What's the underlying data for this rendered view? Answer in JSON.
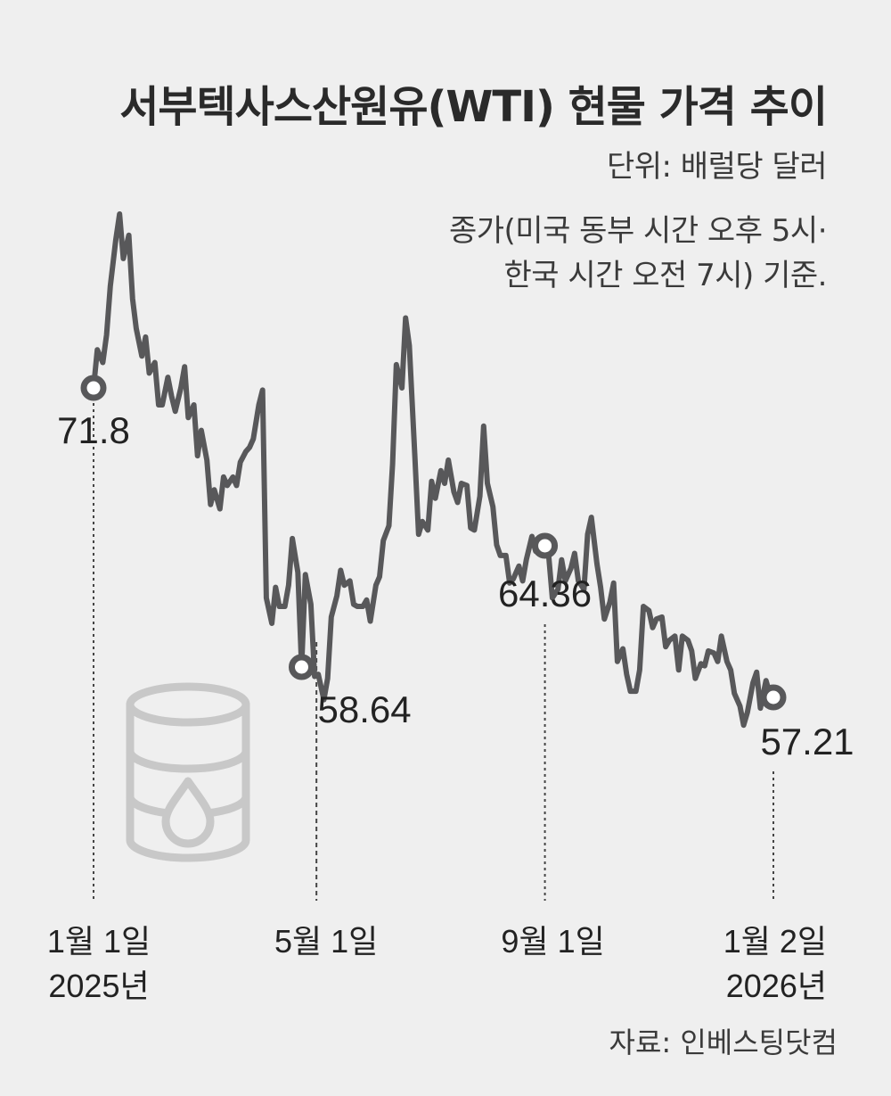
{
  "header": {
    "title": "서부텍사스산원유(WTI) 현물 가격 추이",
    "unit": "단위: 배럴당 달러",
    "note_line1": "종가(미국 동부 시간 오후 5시·",
    "note_line2": "한국 시간 오전 7시) 기준."
  },
  "source": "자료: 인베스팅닷컴",
  "icon": "oil-barrel-icon",
  "colors": {
    "background": "#efefef",
    "line": "#58585a",
    "marker_fill": "#ffffff",
    "icon": "#c8c8c8"
  },
  "chart_data": {
    "type": "line",
    "title": "서부텍사스산원유(WTI) 현물 가격 추이",
    "ylabel": "단위: 배럴당 달러",
    "x_ticks": [
      {
        "lines": [
          "1월 1일",
          "2025년"
        ],
        "date": "2025-01-01"
      },
      {
        "lines": [
          "5월 1일"
        ],
        "date": "2025-05-01"
      },
      {
        "lines": [
          "9월 1일"
        ],
        "date": "2025-09-01"
      },
      {
        "lines": [
          "1월 2일",
          "2026년"
        ],
        "date": "2026-01-02"
      }
    ],
    "labeled_points": [
      {
        "date": "2025-01-01",
        "value": 71.8,
        "label": "71.8"
      },
      {
        "date": "2025-04-23",
        "value": 58.64,
        "label": "58.64"
      },
      {
        "date": "2025-09-01",
        "value": 64.36,
        "label": "64.36"
      },
      {
        "date": "2026-01-02",
        "value": 57.21,
        "label": "57.21"
      }
    ],
    "series": [
      {
        "values": [
          [
            "2025-01-01",
            71.8
          ],
          [
            "2025-01-03",
            73.6
          ],
          [
            "2025-01-06",
            73.0
          ],
          [
            "2025-01-08",
            74.3
          ],
          [
            "2025-01-10",
            76.6
          ],
          [
            "2025-01-13",
            78.8
          ],
          [
            "2025-01-15",
            80.0
          ],
          [
            "2025-01-17",
            77.9
          ],
          [
            "2025-01-20",
            79.0
          ],
          [
            "2025-01-22",
            76.0
          ],
          [
            "2025-01-24",
            74.6
          ],
          [
            "2025-01-27",
            73.3
          ],
          [
            "2025-01-29",
            74.2
          ],
          [
            "2025-01-31",
            72.5
          ],
          [
            "2025-02-03",
            73.0
          ],
          [
            "2025-02-05",
            71.0
          ],
          [
            "2025-02-07",
            71.0
          ],
          [
            "2025-02-10",
            72.3
          ],
          [
            "2025-02-12",
            71.4
          ],
          [
            "2025-02-14",
            70.7
          ],
          [
            "2025-02-17",
            71.8
          ],
          [
            "2025-02-19",
            72.8
          ],
          [
            "2025-02-21",
            70.4
          ],
          [
            "2025-02-24",
            71.0
          ],
          [
            "2025-02-26",
            68.6
          ],
          [
            "2025-02-28",
            69.8
          ],
          [
            "2025-03-03",
            68.4
          ],
          [
            "2025-03-05",
            66.3
          ],
          [
            "2025-03-07",
            67.0
          ],
          [
            "2025-03-10",
            66.1
          ],
          [
            "2025-03-12",
            67.6
          ],
          [
            "2025-03-14",
            67.2
          ],
          [
            "2025-03-17",
            67.6
          ],
          [
            "2025-03-19",
            67.2
          ],
          [
            "2025-03-21",
            68.3
          ],
          [
            "2025-03-24",
            68.8
          ],
          [
            "2025-03-26",
            69.0
          ],
          [
            "2025-03-28",
            69.4
          ],
          [
            "2025-03-31",
            71.0
          ],
          [
            "2025-04-02",
            71.7
          ],
          [
            "2025-04-04",
            61.9
          ],
          [
            "2025-04-07",
            60.7
          ],
          [
            "2025-04-09",
            62.4
          ],
          [
            "2025-04-11",
            61.5
          ],
          [
            "2025-04-14",
            61.5
          ],
          [
            "2025-04-16",
            62.5
          ],
          [
            "2025-04-18",
            64.7
          ],
          [
            "2025-04-21",
            63.1
          ],
          [
            "2025-04-23",
            58.64
          ],
          [
            "2025-04-25",
            63.0
          ],
          [
            "2025-04-28",
            61.6
          ],
          [
            "2025-04-30",
            58.2
          ],
          [
            "2025-05-02",
            58.3
          ],
          [
            "2025-05-05",
            57.1
          ],
          [
            "2025-05-07",
            58.1
          ],
          [
            "2025-05-09",
            61.0
          ],
          [
            "2025-05-12",
            62.0
          ],
          [
            "2025-05-14",
            63.2
          ],
          [
            "2025-05-16",
            62.5
          ],
          [
            "2025-05-19",
            62.7
          ],
          [
            "2025-05-21",
            61.6
          ],
          [
            "2025-05-23",
            61.5
          ],
          [
            "2025-05-26",
            61.5
          ],
          [
            "2025-05-28",
            61.8
          ],
          [
            "2025-05-30",
            60.8
          ],
          [
            "2025-06-02",
            62.5
          ],
          [
            "2025-06-04",
            62.9
          ],
          [
            "2025-06-06",
            64.6
          ],
          [
            "2025-06-09",
            65.3
          ],
          [
            "2025-06-11",
            68.2
          ],
          [
            "2025-06-13",
            72.9
          ],
          [
            "2025-06-16",
            71.8
          ],
          [
            "2025-06-18",
            75.1
          ],
          [
            "2025-06-20",
            73.8
          ],
          [
            "2025-06-23",
            68.5
          ],
          [
            "2025-06-25",
            64.9
          ],
          [
            "2025-06-27",
            65.5
          ],
          [
            "2025-06-30",
            65.1
          ],
          [
            "2025-07-02",
            67.4
          ],
          [
            "2025-07-04",
            66.6
          ],
          [
            "2025-07-07",
            67.9
          ],
          [
            "2025-07-09",
            67.3
          ],
          [
            "2025-07-11",
            68.4
          ],
          [
            "2025-07-14",
            66.9
          ],
          [
            "2025-07-16",
            66.4
          ],
          [
            "2025-07-18",
            67.3
          ],
          [
            "2025-07-21",
            67.2
          ],
          [
            "2025-07-23",
            65.2
          ],
          [
            "2025-07-25",
            65.1
          ],
          [
            "2025-07-28",
            66.7
          ],
          [
            "2025-07-30",
            70.0
          ],
          [
            "2025-08-01",
            67.3
          ],
          [
            "2025-08-04",
            66.2
          ],
          [
            "2025-08-06",
            64.4
          ],
          [
            "2025-08-08",
            63.9
          ],
          [
            "2025-08-11",
            63.9
          ],
          [
            "2025-08-13",
            62.6
          ],
          [
            "2025-08-15",
            62.8
          ],
          [
            "2025-08-18",
            63.4
          ],
          [
            "2025-08-20",
            62.7
          ],
          [
            "2025-08-22",
            63.7
          ],
          [
            "2025-08-25",
            64.8
          ],
          [
            "2025-08-27",
            64.1
          ],
          [
            "2025-08-29",
            64.0
          ],
          [
            "2025-09-01",
            64.36
          ],
          [
            "2025-09-03",
            63.9
          ],
          [
            "2025-09-05",
            61.9
          ],
          [
            "2025-09-08",
            62.3
          ],
          [
            "2025-09-10",
            63.7
          ],
          [
            "2025-09-12",
            62.7
          ],
          [
            "2025-09-15",
            63.3
          ],
          [
            "2025-09-17",
            64.0
          ],
          [
            "2025-09-19",
            62.7
          ],
          [
            "2025-09-22",
            62.3
          ],
          [
            "2025-09-24",
            64.9
          ],
          [
            "2025-09-26",
            65.7
          ],
          [
            "2025-09-29",
            63.5
          ],
          [
            "2025-10-01",
            62.4
          ],
          [
            "2025-10-03",
            60.9
          ],
          [
            "2025-10-06",
            61.7
          ],
          [
            "2025-10-08",
            62.6
          ],
          [
            "2025-10-10",
            58.9
          ],
          [
            "2025-10-13",
            59.5
          ],
          [
            "2025-10-15",
            58.3
          ],
          [
            "2025-10-17",
            57.5
          ],
          [
            "2025-10-20",
            57.5
          ],
          [
            "2025-10-22",
            58.5
          ],
          [
            "2025-10-24",
            61.5
          ],
          [
            "2025-10-27",
            61.3
          ],
          [
            "2025-10-29",
            60.5
          ],
          [
            "2025-10-31",
            60.9
          ],
          [
            "2025-11-03",
            61.0
          ],
          [
            "2025-11-05",
            59.6
          ],
          [
            "2025-11-07",
            59.9
          ],
          [
            "2025-11-10",
            60.1
          ],
          [
            "2025-11-12",
            58.5
          ],
          [
            "2025-11-14",
            60.1
          ],
          [
            "2025-11-17",
            59.9
          ],
          [
            "2025-11-19",
            59.4
          ],
          [
            "2025-11-21",
            58.1
          ],
          [
            "2025-11-24",
            58.8
          ],
          [
            "2025-11-26",
            58.7
          ],
          [
            "2025-11-28",
            59.4
          ],
          [
            "2025-12-01",
            59.3
          ],
          [
            "2025-12-03",
            58.9
          ],
          [
            "2025-12-05",
            60.1
          ],
          [
            "2025-12-08",
            58.9
          ],
          [
            "2025-12-10",
            58.5
          ],
          [
            "2025-12-12",
            57.4
          ],
          [
            "2025-12-15",
            56.8
          ],
          [
            "2025-12-17",
            55.9
          ],
          [
            "2025-12-19",
            56.5
          ],
          [
            "2025-12-22",
            57.9
          ],
          [
            "2025-12-24",
            58.4
          ],
          [
            "2025-12-26",
            56.7
          ],
          [
            "2025-12-29",
            58.0
          ],
          [
            "2025-12-31",
            57.4
          ],
          [
            "2026-01-02",
            57.21
          ]
        ]
      }
    ]
  }
}
